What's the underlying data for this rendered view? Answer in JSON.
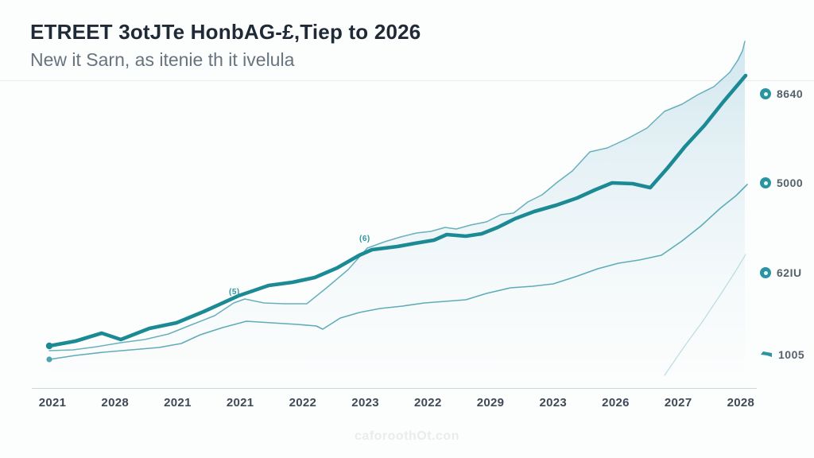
{
  "header": {
    "title": "ETREET 3otJTe HonbAG-£,Tiep to 2026",
    "subtitle": "New it Sarn, as itenie th it ivelula"
  },
  "watermark": "caforoothOt.con",
  "colors": {
    "main_line": "#1b8a94",
    "thin_line": "#4fa3b0",
    "faint_line": "#8cc1cb",
    "area_fill_top": "#c9e3ec",
    "axis": "#ccd8de",
    "title_text": "#1f2a36",
    "subtitle_text": "#67737f",
    "x_label_text": "#3f4a56",
    "right_label_text": "#56616b",
    "icon_teal": "#2a95a0"
  },
  "right_labels": [
    {
      "icon": "coin-circle-icon",
      "value": "8640"
    },
    {
      "icon": "coin-circle-icon",
      "value": "5000"
    },
    {
      "icon": "globe-circle-icon",
      "value": "62IU"
    },
    {
      "icon": "arrow-icon",
      "value": "1005"
    }
  ],
  "chart_data": {
    "type": "line",
    "title": "ETREET 3otJTe HonbAG-£,Tiep to 2026",
    "subtitle": "New it Sarn, as itenie th it ivelula",
    "categories": [
      "2021",
      "2028",
      "2021",
      "2021",
      "2022",
      "2023",
      "2022",
      "2029",
      "2023",
      "2026",
      "2027",
      "2028"
    ],
    "legend": "none",
    "grid": "off",
    "y_axis_ticks": "none (values shown as right-side labels 8640, 5000, 62IU, 1005)",
    "annotations": [
      {
        "text": "(5)"
      },
      {
        "text": "(6)"
      }
    ],
    "series": [
      {
        "name": "main-trend-thick",
        "points": [
          [
            62,
            435
          ],
          [
            95,
            429
          ],
          [
            128,
            419
          ],
          [
            152,
            427
          ],
          [
            188,
            413
          ],
          [
            222,
            406
          ],
          [
            256,
            392
          ],
          [
            300,
            372
          ],
          [
            338,
            359
          ],
          [
            368,
            355
          ],
          [
            396,
            349
          ],
          [
            424,
            337
          ],
          [
            452,
            321
          ],
          [
            468,
            314
          ],
          [
            500,
            310
          ],
          [
            522,
            306
          ],
          [
            546,
            302
          ],
          [
            562,
            295
          ],
          [
            586,
            297
          ],
          [
            606,
            294
          ],
          [
            626,
            286
          ],
          [
            648,
            275
          ],
          [
            672,
            266
          ],
          [
            700,
            258
          ],
          [
            726,
            249
          ],
          [
            748,
            239
          ],
          [
            770,
            230
          ],
          [
            796,
            231
          ],
          [
            818,
            236
          ],
          [
            840,
            211
          ],
          [
            862,
            184
          ],
          [
            886,
            158
          ],
          [
            910,
            128
          ],
          [
            938,
            95
          ]
        ]
      },
      {
        "name": "upper-thin-trend",
        "points": [
          [
            62,
            441
          ],
          [
            92,
            440
          ],
          [
            122,
            436
          ],
          [
            152,
            431
          ],
          [
            182,
            427
          ],
          [
            212,
            420
          ],
          [
            242,
            408
          ],
          [
            270,
            397
          ],
          [
            294,
            381
          ],
          [
            308,
            376
          ],
          [
            332,
            381
          ],
          [
            358,
            382
          ],
          [
            386,
            382
          ],
          [
            412,
            361
          ],
          [
            438,
            339
          ],
          [
            462,
            312
          ],
          [
            484,
            304
          ],
          [
            504,
            298
          ],
          [
            524,
            293
          ],
          [
            542,
            291
          ],
          [
            560,
            286
          ],
          [
            574,
            288
          ],
          [
            592,
            283
          ],
          [
            612,
            279
          ],
          [
            630,
            270
          ],
          [
            646,
            268
          ],
          [
            664,
            254
          ],
          [
            682,
            245
          ],
          [
            700,
            230
          ],
          [
            720,
            215
          ],
          [
            742,
            191
          ],
          [
            764,
            186
          ],
          [
            790,
            174
          ],
          [
            814,
            161
          ],
          [
            836,
            140
          ],
          [
            858,
            131
          ],
          [
            878,
            119
          ],
          [
            898,
            109
          ],
          [
            918,
            91
          ],
          [
            928,
            76
          ],
          [
            934,
            64
          ],
          [
            937,
            52
          ]
        ]
      },
      {
        "name": "lower-thin-trend",
        "points": [
          [
            62,
            452
          ],
          [
            95,
            447
          ],
          [
            130,
            443
          ],
          [
            165,
            440
          ],
          [
            200,
            437
          ],
          [
            228,
            432
          ],
          [
            252,
            421
          ],
          [
            280,
            412
          ],
          [
            310,
            404
          ],
          [
            342,
            406
          ],
          [
            374,
            408
          ],
          [
            398,
            410
          ],
          [
            406,
            414
          ],
          [
            428,
            400
          ],
          [
            452,
            393
          ],
          [
            478,
            388
          ],
          [
            506,
            385
          ],
          [
            534,
            381
          ],
          [
            560,
            379
          ],
          [
            586,
            377
          ],
          [
            612,
            369
          ],
          [
            642,
            362
          ],
          [
            670,
            360
          ],
          [
            696,
            357
          ],
          [
            724,
            348
          ],
          [
            752,
            338
          ],
          [
            778,
            331
          ],
          [
            804,
            327
          ],
          [
            832,
            321
          ],
          [
            858,
            303
          ],
          [
            882,
            284
          ],
          [
            906,
            262
          ],
          [
            926,
            246
          ],
          [
            940,
            232
          ]
        ]
      },
      {
        "name": "faint-tail-trend",
        "points": [
          [
            836,
            472
          ],
          [
            860,
            437
          ],
          [
            884,
            404
          ],
          [
            908,
            368
          ],
          [
            926,
            340
          ],
          [
            938,
            320
          ]
        ]
      }
    ]
  }
}
